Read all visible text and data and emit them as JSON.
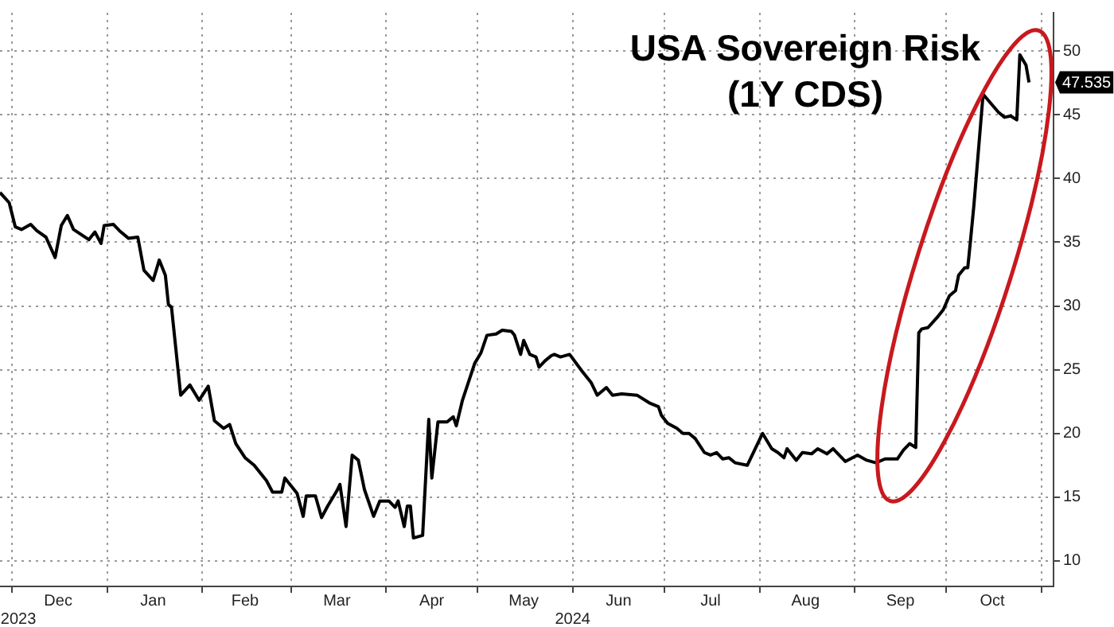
{
  "chart_data": {
    "type": "line",
    "title": "USA Sovereign Risk (1Y CDS)",
    "color": "#000000",
    "marker": "none",
    "line_style": "solid",
    "legend": false,
    "grid": true,
    "x": [
      "2023-11-27",
      "2023-11-30",
      "2023-12-02",
      "2023-12-04",
      "2023-12-07",
      "2023-12-09",
      "2023-12-12",
      "2023-12-15",
      "2023-12-17",
      "2023-12-19",
      "2023-12-21",
      "2023-12-26",
      "2023-12-28",
      "2023-12-30",
      "2023-12-31",
      "2024-01-03",
      "2024-01-05",
      "2024-01-08",
      "2024-01-11",
      "2024-01-13",
      "2024-01-16",
      "2024-01-18",
      "2024-01-20",
      "2024-01-21",
      "2024-01-22",
      "2024-01-25",
      "2024-01-28",
      "2024-01-31",
      "2024-02-03",
      "2024-02-05",
      "2024-02-08",
      "2024-02-10",
      "2024-02-12",
      "2024-02-15",
      "2024-02-18",
      "2024-02-22",
      "2024-02-24",
      "2024-02-27",
      "2024-02-28",
      "2024-03-03",
      "2024-03-05",
      "2024-03-06",
      "2024-03-09",
      "2024-03-11",
      "2024-03-13",
      "2024-03-16",
      "2024-03-17",
      "2024-03-19",
      "2024-03-21",
      "2024-03-23",
      "2024-03-25",
      "2024-03-28",
      "2024-03-30",
      "2024-04-02",
      "2024-04-04",
      "2024-04-05",
      "2024-04-07",
      "2024-04-08",
      "2024-04-09",
      "2024-04-10",
      "2024-04-13",
      "2024-04-15",
      "2024-04-16",
      "2024-04-18",
      "2024-04-21",
      "2024-04-23",
      "2024-04-24",
      "2024-04-26",
      "2024-04-30",
      "2024-05-02",
      "2024-05-04",
      "2024-05-07",
      "2024-05-09",
      "2024-05-12",
      "2024-05-13",
      "2024-05-15",
      "2024-05-16",
      "2024-05-18",
      "2024-05-20",
      "2024-05-21",
      "2024-05-23",
      "2024-05-25",
      "2024-05-26",
      "2024-05-28",
      "2024-05-31",
      "2024-06-04",
      "2024-06-07",
      "2024-06-09",
      "2024-06-12",
      "2024-06-14",
      "2024-06-17",
      "2024-06-22",
      "2024-06-26",
      "2024-06-29",
      "2024-06-30",
      "2024-07-02",
      "2024-07-05",
      "2024-07-07",
      "2024-07-09",
      "2024-07-11",
      "2024-07-14",
      "2024-07-16",
      "2024-07-18",
      "2024-07-20",
      "2024-07-22",
      "2024-07-24",
      "2024-07-28",
      "2024-08-02",
      "2024-08-05",
      "2024-08-07",
      "2024-08-09",
      "2024-08-10",
      "2024-08-13",
      "2024-08-15",
      "2024-08-18",
      "2024-08-20",
      "2024-08-23",
      "2024-08-25",
      "2024-08-29",
      "2024-09-02",
      "2024-09-05",
      "2024-09-08",
      "2024-09-11",
      "2024-09-15",
      "2024-09-17",
      "2024-09-19",
      "2024-09-21",
      "2024-09-22",
      "2024-09-23",
      "2024-09-25",
      "2024-09-28",
      "2024-09-30",
      "2024-10-02",
      "2024-10-04",
      "2024-10-05",
      "2024-10-07",
      "2024-10-08",
      "2024-10-09",
      "2024-10-10",
      "2024-10-13",
      "2024-10-18",
      "2024-10-20",
      "2024-10-22",
      "2024-10-24",
      "2024-10-25",
      "2024-10-27",
      "2024-10-28"
    ],
    "values": [
      38.9,
      38.1,
      36.2,
      36.0,
      36.4,
      35.9,
      35.4,
      33.8,
      36.3,
      37.1,
      36.0,
      35.2,
      35.8,
      34.9,
      36.3,
      36.4,
      35.9,
      35.3,
      35.4,
      32.8,
      32.0,
      33.6,
      32.4,
      30.1,
      29.9,
      23.0,
      23.8,
      22.6,
      23.7,
      21.0,
      20.4,
      20.7,
      19.2,
      18.1,
      17.5,
      16.3,
      15.4,
      15.4,
      16.5,
      15.3,
      13.5,
      15.1,
      15.1,
      13.4,
      14.3,
      15.5,
      16.0,
      12.7,
      18.3,
      17.9,
      15.6,
      13.5,
      14.7,
      14.7,
      14.2,
      14.7,
      12.7,
      14.3,
      14.3,
      11.8,
      12.0,
      21.1,
      16.5,
      20.9,
      20.9,
      21.3,
      20.6,
      22.6,
      25.5,
      26.3,
      27.7,
      27.8,
      28.1,
      28.0,
      27.7,
      26.2,
      27.3,
      26.2,
      26.0,
      25.2,
      25.7,
      26.1,
      26.2,
      26.0,
      26.2,
      24.9,
      24.0,
      23.0,
      23.6,
      23.0,
      23.1,
      23.0,
      22.4,
      22.1,
      21.4,
      20.8,
      20.4,
      20.0,
      20.0,
      19.6,
      18.5,
      18.3,
      18.5,
      18.0,
      18.1,
      17.7,
      17.5,
      20.0,
      18.8,
      18.5,
      18.1,
      18.8,
      17.9,
      18.5,
      18.4,
      18.8,
      18.4,
      18.8,
      17.8,
      18.3,
      17.9,
      17.7,
      18.0,
      18.0,
      18.7,
      19.2,
      18.9,
      27.9,
      28.2,
      28.3,
      29.1,
      29.7,
      30.8,
      31.2,
      32.4,
      33.0,
      33.0,
      35.4,
      37.9,
      46.6,
      45.2,
      44.8,
      44.9,
      44.6,
      49.7,
      48.9,
      47.535
    ],
    "xlim": [
      "2023-11-27",
      "2024-11-05"
    ],
    "xticks": [
      {
        "value": "2023-12-01",
        "label": null
      },
      {
        "value": "2024-01-01",
        "label": null
      },
      {
        "value": "2024-02-01",
        "label": null
      },
      {
        "value": "2024-03-01",
        "label": null
      },
      {
        "value": "2024-04-01",
        "label": null
      },
      {
        "value": "2024-05-01",
        "label": null
      },
      {
        "value": "2024-06-01",
        "label": null
      },
      {
        "value": "2024-07-01",
        "label": null
      },
      {
        "value": "2024-08-01",
        "label": null
      },
      {
        "value": "2024-09-01",
        "label": null
      },
      {
        "value": "2024-10-01",
        "label": null
      },
      {
        "value": "2024-11-01",
        "label": null
      },
      {
        "value": "2023-12-16",
        "label": "Dec"
      },
      {
        "value": "2024-01-16",
        "label": "Jan"
      },
      {
        "value": "2024-02-15",
        "label": "Feb"
      },
      {
        "value": "2024-03-16",
        "label": "Mar"
      },
      {
        "value": "2024-04-16",
        "label": "Apr"
      },
      {
        "value": "2024-05-16",
        "label": "May"
      },
      {
        "value": "2024-06-16",
        "label": "Jun"
      },
      {
        "value": "2024-07-16",
        "label": "Jul"
      },
      {
        "value": "2024-08-16",
        "label": "Aug"
      },
      {
        "value": "2024-09-16",
        "label": "Sep"
      },
      {
        "value": "2024-10-16",
        "label": "Oct"
      }
    ],
    "ylim": [
      8,
      53
    ],
    "yticks": [
      10,
      15,
      20,
      25,
      30,
      35,
      40,
      45,
      50
    ],
    "x2lim": [
      "2023-11-27",
      "2024-11-05"
    ],
    "x2ticks": [
      {
        "value": "2023-12-03",
        "label": "2023"
      },
      {
        "value": "2024-06-01",
        "label": "2024"
      }
    ],
    "annotations": [
      {
        "text": "47.535",
        "x": "2024-10-28",
        "y": 47.535
      }
    ]
  }
}
